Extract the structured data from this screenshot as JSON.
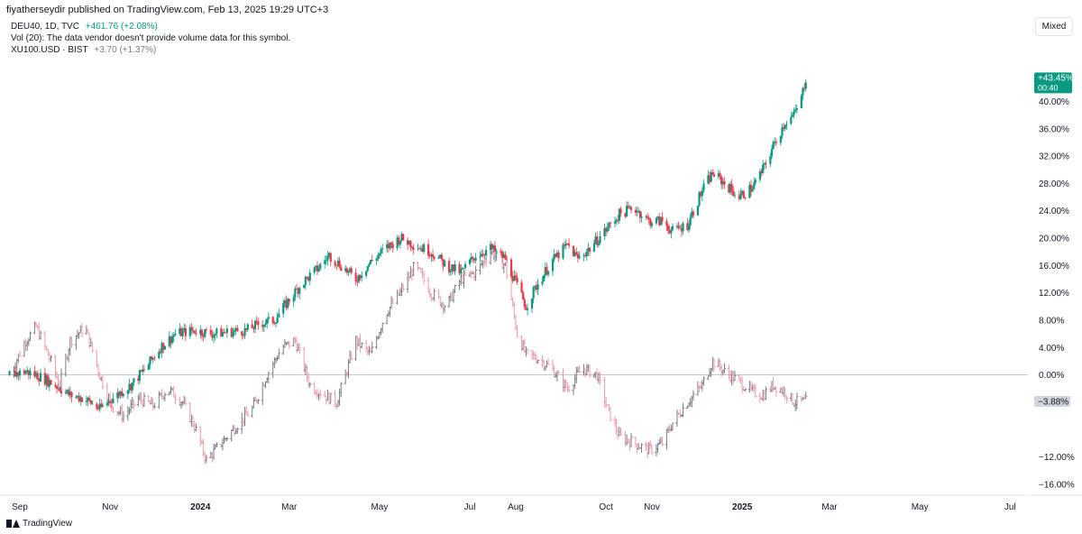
{
  "attribution": "fiyatherseydir published on TradingView.com, Feb 13, 2025 19:29 UTC+3",
  "legend": {
    "main_symbol": "DEU40, 1D, TVC",
    "main_change": "+461.76 (+2.08%)",
    "volume_note": "Vol (20): The data vendor doesn't provide volume data for this symbol.",
    "compare_symbol": "XU100.USD · BIST",
    "compare_change": "+3.70 (+1.37%)"
  },
  "controls": {
    "scale_mode": "Mixed"
  },
  "branding": {
    "logo_text": "TradingView",
    "logo_icon": "tradingview-logo-icon"
  },
  "colors": {
    "up": "#089981",
    "down": "#f23645",
    "compare": "#787b86",
    "compare_down": "#ef9aa8"
  },
  "chart_data": {
    "type": "candlestick",
    "y_unit": "percent",
    "ylim": [
      -18,
      46
    ],
    "y_ticks": [
      40,
      36,
      32,
      28,
      24,
      20,
      16,
      12,
      8,
      4,
      0,
      -4,
      -8,
      -12,
      -16
    ],
    "y_tick_labels": [
      "40.00%",
      "36.00%",
      "32.00%",
      "28.00%",
      "24.00%",
      "20.00%",
      "16.00%",
      "12.00%",
      "8.00%",
      "4.00%",
      "0.00%",
      "−12.00%",
      "−16.00%"
    ],
    "y_tick_values_labeled": [
      40,
      36,
      32,
      28,
      24,
      20,
      16,
      12,
      8,
      4,
      0,
      -12,
      -16
    ],
    "x_labels": [
      {
        "label": "Sep",
        "date": "2023-09-01",
        "bold": false
      },
      {
        "label": "Nov",
        "date": "2023-11-01",
        "bold": false
      },
      {
        "label": "2024",
        "date": "2024-01-01",
        "bold": true
      },
      {
        "label": "Mar",
        "date": "2024-03-01",
        "bold": false
      },
      {
        "label": "May",
        "date": "2024-05-01",
        "bold": false
      },
      {
        "label": "Jul",
        "date": "2024-07-01",
        "bold": false
      },
      {
        "label": "Aug",
        "date": "2024-08-01",
        "bold": false
      },
      {
        "label": "Oct",
        "date": "2024-10-01",
        "bold": false
      },
      {
        "label": "Nov",
        "date": "2024-11-01",
        "bold": false
      },
      {
        "label": "2025",
        "date": "2025-01-01",
        "bold": true
      },
      {
        "label": "Mar",
        "date": "2025-03-01",
        "bold": false
      },
      {
        "label": "May",
        "date": "2025-05-01",
        "bold": false
      },
      {
        "label": "Jul",
        "date": "2025-07-01",
        "bold": false
      }
    ],
    "baseline": 0,
    "last_value_labels": [
      {
        "series": "DEU40",
        "text": "+43.45%",
        "subtext": "00:40",
        "value": 43.45
      },
      {
        "series": "XU100.USD",
        "text": "−3.88%",
        "value": -3.88
      }
    ],
    "series": [
      {
        "name": "DEU40",
        "style": "candles",
        "points": [
          {
            "date": "2023-08-25",
            "value": 0.0
          },
          {
            "date": "2023-09-05",
            "value": 0.5
          },
          {
            "date": "2023-09-15",
            "value": -0.3
          },
          {
            "date": "2023-09-25",
            "value": -1.5
          },
          {
            "date": "2023-10-05",
            "value": -3.0
          },
          {
            "date": "2023-10-15",
            "value": -3.5
          },
          {
            "date": "2023-10-25",
            "value": -5.0
          },
          {
            "date": "2023-11-02",
            "value": -3.5
          },
          {
            "date": "2023-11-15",
            "value": -1.5
          },
          {
            "date": "2023-11-25",
            "value": 1.0
          },
          {
            "date": "2023-12-05",
            "value": 4.0
          },
          {
            "date": "2023-12-15",
            "value": 6.0
          },
          {
            "date": "2023-12-28",
            "value": 6.5
          },
          {
            "date": "2024-01-10",
            "value": 6.0
          },
          {
            "date": "2024-01-20",
            "value": 6.3
          },
          {
            "date": "2024-02-01",
            "value": 6.5
          },
          {
            "date": "2024-02-10",
            "value": 7.5
          },
          {
            "date": "2024-02-20",
            "value": 8.0
          },
          {
            "date": "2024-03-01",
            "value": 11.0
          },
          {
            "date": "2024-03-10",
            "value": 13.5
          },
          {
            "date": "2024-03-20",
            "value": 15.5
          },
          {
            "date": "2024-03-28",
            "value": 17.5
          },
          {
            "date": "2024-04-05",
            "value": 16.0
          },
          {
            "date": "2024-04-15",
            "value": 14.0
          },
          {
            "date": "2024-04-25",
            "value": 16.5
          },
          {
            "date": "2024-05-05",
            "value": 18.5
          },
          {
            "date": "2024-05-15",
            "value": 20.0
          },
          {
            "date": "2024-05-25",
            "value": 19.0
          },
          {
            "date": "2024-06-05",
            "value": 18.0
          },
          {
            "date": "2024-06-15",
            "value": 16.0
          },
          {
            "date": "2024-06-25",
            "value": 15.0
          },
          {
            "date": "2024-07-05",
            "value": 17.5
          },
          {
            "date": "2024-07-15",
            "value": 18.5
          },
          {
            "date": "2024-07-25",
            "value": 17.0
          },
          {
            "date": "2024-08-02",
            "value": 13.0
          },
          {
            "date": "2024-08-08",
            "value": 10.0
          },
          {
            "date": "2024-08-15",
            "value": 13.0
          },
          {
            "date": "2024-08-25",
            "value": 16.5
          },
          {
            "date": "2024-09-05",
            "value": 19.0
          },
          {
            "date": "2024-09-12",
            "value": 17.0
          },
          {
            "date": "2024-09-20",
            "value": 18.5
          },
          {
            "date": "2024-09-30",
            "value": 21.0
          },
          {
            "date": "2024-10-10",
            "value": 23.5
          },
          {
            "date": "2024-10-20",
            "value": 24.5
          },
          {
            "date": "2024-10-30",
            "value": 22.5
          },
          {
            "date": "2024-11-08",
            "value": 22.5
          },
          {
            "date": "2024-11-15",
            "value": 21.0
          },
          {
            "date": "2024-11-25",
            "value": 22.0
          },
          {
            "date": "2024-12-05",
            "value": 27.0
          },
          {
            "date": "2024-12-12",
            "value": 29.5
          },
          {
            "date": "2024-12-20",
            "value": 28.0
          },
          {
            "date": "2024-12-30",
            "value": 26.0
          },
          {
            "date": "2025-01-08",
            "value": 27.5
          },
          {
            "date": "2025-01-15",
            "value": 30.0
          },
          {
            "date": "2025-01-22",
            "value": 33.5
          },
          {
            "date": "2025-01-30",
            "value": 37.0
          },
          {
            "date": "2025-02-05",
            "value": 38.0
          },
          {
            "date": "2025-02-10",
            "value": 40.5
          },
          {
            "date": "2025-02-13",
            "value": 43.45
          }
        ]
      },
      {
        "name": "XU100.USD",
        "style": "bars",
        "points": [
          {
            "date": "2023-08-25",
            "value": 0.0
          },
          {
            "date": "2023-09-05",
            "value": 5.0
          },
          {
            "date": "2023-09-12",
            "value": 7.0
          },
          {
            "date": "2023-09-20",
            "value": 3.0
          },
          {
            "date": "2023-09-28",
            "value": -1.5
          },
          {
            "date": "2023-10-05",
            "value": 5.0
          },
          {
            "date": "2023-10-15",
            "value": 7.0
          },
          {
            "date": "2023-10-25",
            "value": 0.0
          },
          {
            "date": "2023-11-02",
            "value": -4.5
          },
          {
            "date": "2023-11-10",
            "value": -6.0
          },
          {
            "date": "2023-11-20",
            "value": -3.5
          },
          {
            "date": "2023-11-30",
            "value": -4.5
          },
          {
            "date": "2023-12-10",
            "value": -2.0
          },
          {
            "date": "2023-12-20",
            "value": -4.0
          },
          {
            "date": "2023-12-28",
            "value": -7.5
          },
          {
            "date": "2024-01-05",
            "value": -12.5
          },
          {
            "date": "2024-01-15",
            "value": -10.0
          },
          {
            "date": "2024-01-25",
            "value": -7.5
          },
          {
            "date": "2024-02-05",
            "value": -5.0
          },
          {
            "date": "2024-02-15",
            "value": 0.0
          },
          {
            "date": "2024-02-25",
            "value": 4.0
          },
          {
            "date": "2024-03-05",
            "value": 5.0
          },
          {
            "date": "2024-03-15",
            "value": -1.5
          },
          {
            "date": "2024-03-25",
            "value": -3.0
          },
          {
            "date": "2024-04-02",
            "value": -4.0
          },
          {
            "date": "2024-04-08",
            "value": 0.0
          },
          {
            "date": "2024-04-15",
            "value": 5.0
          },
          {
            "date": "2024-04-25",
            "value": 3.0
          },
          {
            "date": "2024-05-05",
            "value": 9.0
          },
          {
            "date": "2024-05-15",
            "value": 12.0
          },
          {
            "date": "2024-05-25",
            "value": 16.0
          },
          {
            "date": "2024-06-05",
            "value": 12.0
          },
          {
            "date": "2024-06-15",
            "value": 10.0
          },
          {
            "date": "2024-06-25",
            "value": 14.0
          },
          {
            "date": "2024-07-05",
            "value": 15.0
          },
          {
            "date": "2024-07-15",
            "value": 18.0
          },
          {
            "date": "2024-07-25",
            "value": 16.0
          },
          {
            "date": "2024-08-02",
            "value": 6.0
          },
          {
            "date": "2024-08-08",
            "value": 3.0
          },
          {
            "date": "2024-08-15",
            "value": 2.5
          },
          {
            "date": "2024-08-25",
            "value": 1.0
          },
          {
            "date": "2024-09-05",
            "value": -2.0
          },
          {
            "date": "2024-09-15",
            "value": 1.0
          },
          {
            "date": "2024-09-25",
            "value": 0.0
          },
          {
            "date": "2024-10-02",
            "value": -5.0
          },
          {
            "date": "2024-10-10",
            "value": -9.0
          },
          {
            "date": "2024-10-20",
            "value": -10.0
          },
          {
            "date": "2024-10-30",
            "value": -11.0
          },
          {
            "date": "2024-11-08",
            "value": -10.0
          },
          {
            "date": "2024-11-15",
            "value": -7.0
          },
          {
            "date": "2024-11-25",
            "value": -4.0
          },
          {
            "date": "2024-12-05",
            "value": -1.5
          },
          {
            "date": "2024-12-12",
            "value": 2.0
          },
          {
            "date": "2024-12-20",
            "value": 0.5
          },
          {
            "date": "2024-12-30",
            "value": -1.0
          },
          {
            "date": "2025-01-08",
            "value": -2.5
          },
          {
            "date": "2025-01-15",
            "value": -3.0
          },
          {
            "date": "2025-01-22",
            "value": -1.5
          },
          {
            "date": "2025-01-30",
            "value": -2.5
          },
          {
            "date": "2025-02-05",
            "value": -4.0
          },
          {
            "date": "2025-02-13",
            "value": -3.88
          }
        ]
      }
    ]
  }
}
